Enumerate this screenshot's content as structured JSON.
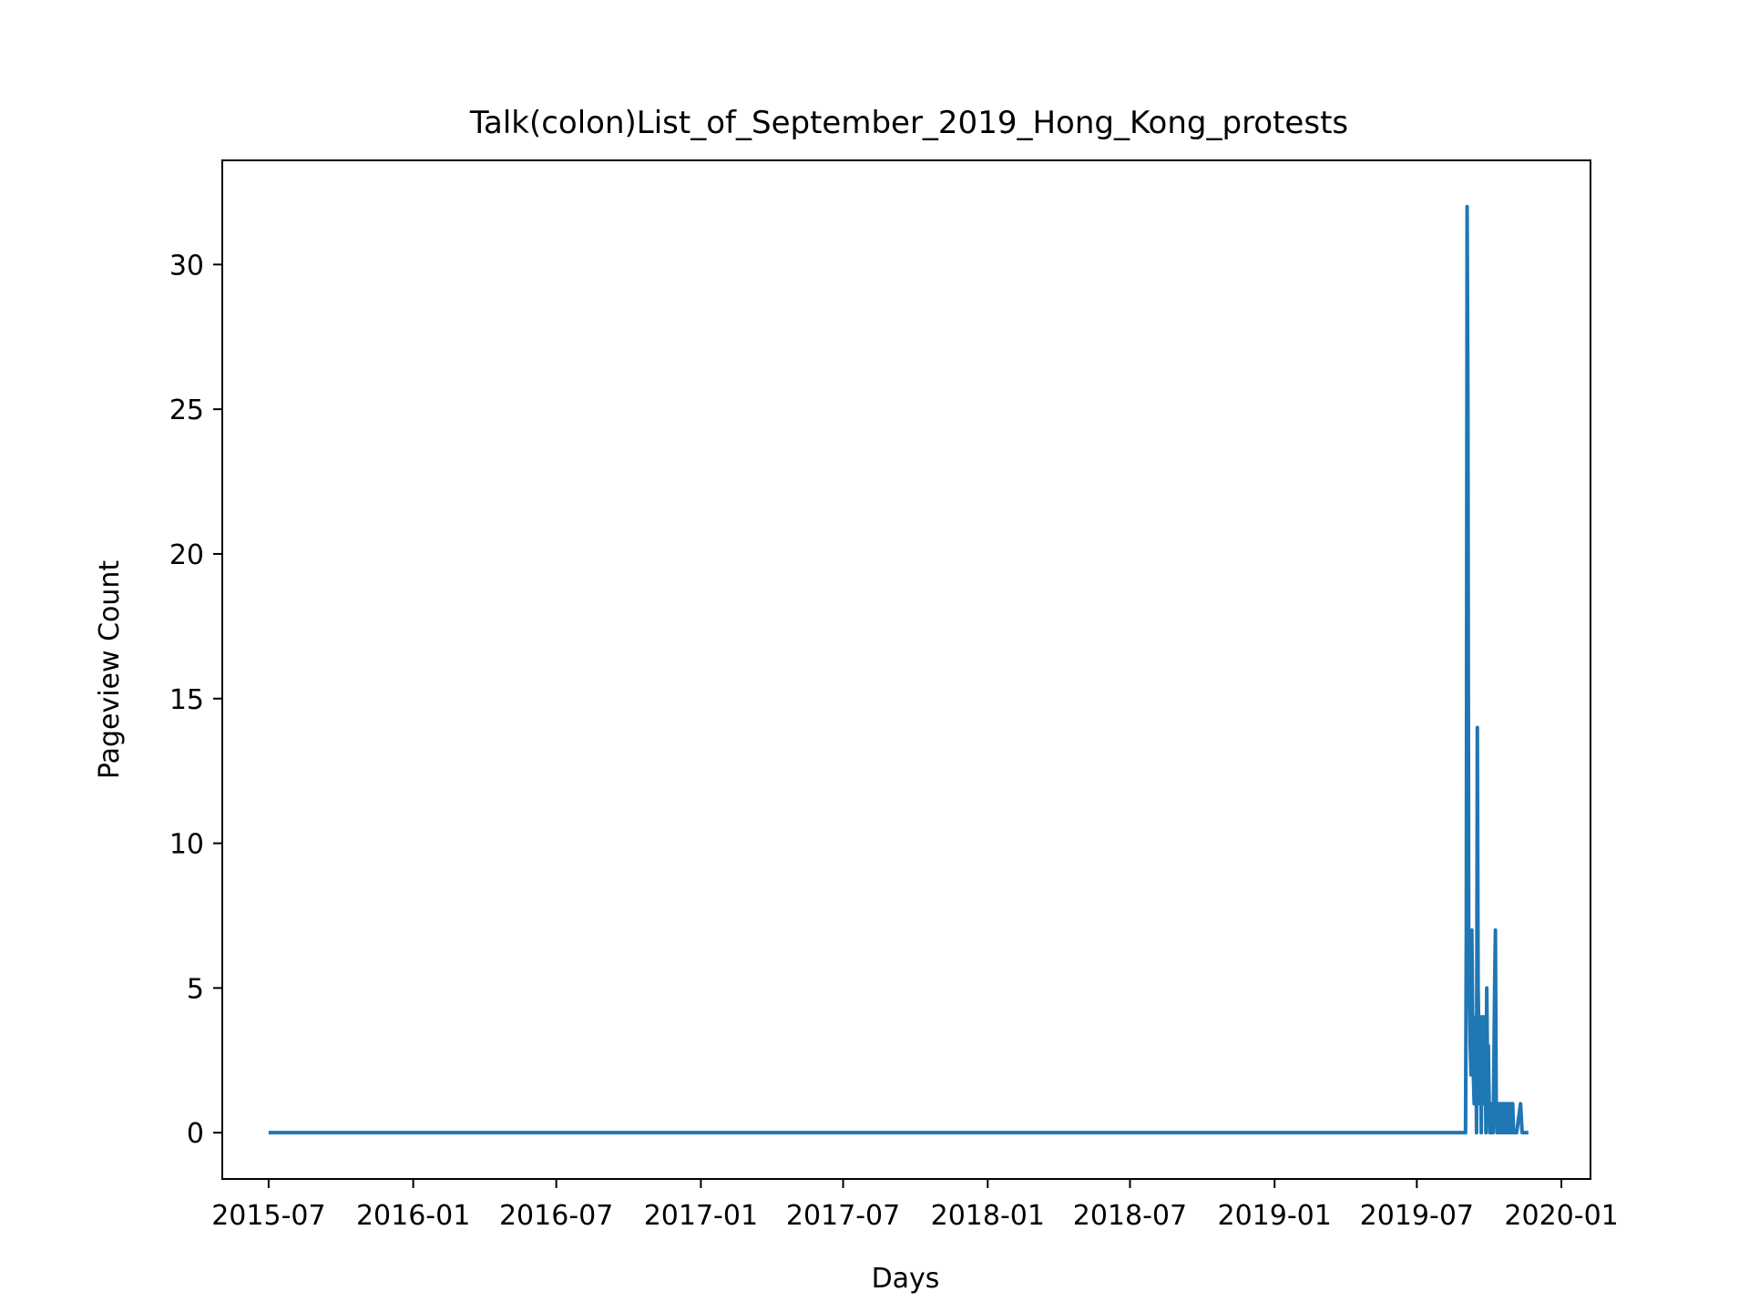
{
  "chart_data": {
    "type": "line",
    "title": "Talk(colon)List_of_September_2019_Hong_Kong_protests",
    "xlabel": "Days",
    "ylabel": "Pageview Count",
    "x_ticks": [
      "2015-07",
      "2016-01",
      "2016-07",
      "2017-01",
      "2017-07",
      "2018-01",
      "2018-07",
      "2019-01",
      "2019-07",
      "2020-01"
    ],
    "x_tick_dates": [
      "2015-07-01",
      "2016-01-01",
      "2016-07-01",
      "2017-01-01",
      "2017-07-01",
      "2018-01-01",
      "2018-07-01",
      "2019-01-01",
      "2019-07-01",
      "2020-01-01"
    ],
    "y_ticks": [
      "0",
      "5",
      "10",
      "15",
      "20",
      "25",
      "30"
    ],
    "xlim": [
      "2015-05-03",
      "2020-02-07"
    ],
    "ylim": [
      -1.6,
      33.6
    ],
    "grid": false,
    "legend": "none",
    "line_color": "#1f77b4",
    "series": [
      {
        "x": [
          "2015-07-01",
          "2019-09-01",
          "2019-09-02",
          "2019-09-03",
          "2019-09-04",
          "2019-09-05",
          "2019-09-06",
          "2019-09-07",
          "2019-09-08",
          "2019-09-09",
          "2019-09-10",
          "2019-09-11",
          "2019-09-12",
          "2019-09-13",
          "2019-09-14",
          "2019-09-15",
          "2019-09-16",
          "2019-09-17",
          "2019-09-18",
          "2019-09-19",
          "2019-09-20",
          "2019-09-21",
          "2019-09-22",
          "2019-09-23",
          "2019-09-24",
          "2019-09-25",
          "2019-09-26",
          "2019-09-27",
          "2019-09-28",
          "2019-09-29",
          "2019-09-30",
          "2019-10-01",
          "2019-10-02",
          "2019-10-03",
          "2019-10-04",
          "2019-10-05",
          "2019-10-06",
          "2019-10-07",
          "2019-10-08",
          "2019-10-09",
          "2019-10-10",
          "2019-10-11",
          "2019-10-12",
          "2019-10-13",
          "2019-10-14",
          "2019-10-15",
          "2019-10-16",
          "2019-10-17",
          "2019-10-18",
          "2019-10-19",
          "2019-10-20",
          "2019-10-21",
          "2019-10-22",
          "2019-10-23",
          "2019-10-24",
          "2019-10-25",
          "2019-10-26",
          "2019-10-27",
          "2019-10-28",
          "2019-10-29",
          "2019-10-30",
          "2019-10-31",
          "2019-11-01",
          "2019-11-02",
          "2019-11-05",
          "2019-11-10",
          "2019-11-12",
          "2019-11-14",
          "2019-11-20"
        ],
        "y": [
          0,
          0,
          7,
          32,
          25,
          7,
          5,
          3,
          2,
          7,
          4,
          2,
          1,
          3,
          4,
          0,
          14,
          5,
          3,
          1,
          4,
          0,
          4,
          2,
          4,
          1,
          3,
          0,
          5,
          2,
          3,
          1,
          0,
          1,
          0,
          1,
          0,
          2,
          5,
          7,
          1,
          0,
          1,
          0,
          1,
          0,
          1,
          1,
          0,
          1,
          0,
          1,
          0,
          0,
          1,
          0,
          1,
          0,
          1,
          0,
          0,
          1,
          0,
          0,
          0,
          1,
          0,
          0,
          0
        ]
      }
    ]
  }
}
